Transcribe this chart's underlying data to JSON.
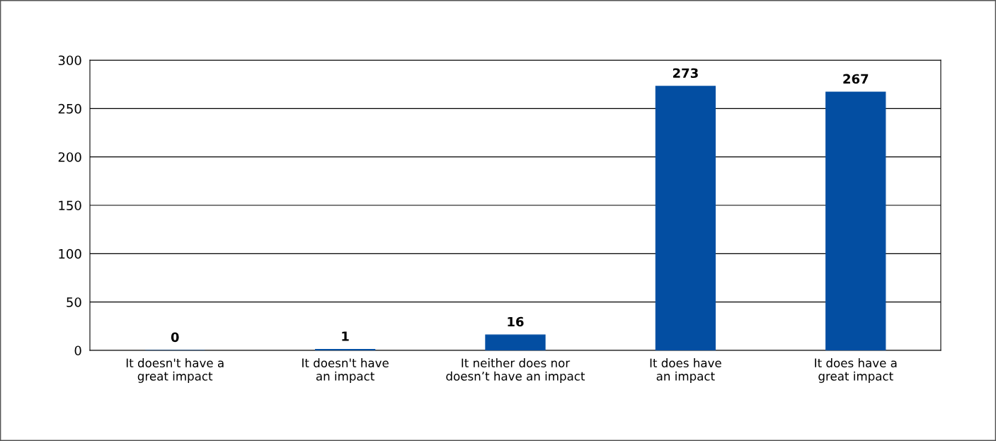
{
  "chart_data": {
    "type": "bar",
    "categories": [
      "It doesn't have a\ngreat impact",
      "It doesn't have\nan impact",
      "It neither does nor\ndoesn’t have an impact",
      "It does have\nan impact",
      "It does have a\ngreat impact"
    ],
    "values": [
      0,
      1,
      16,
      273,
      267
    ],
    "color": "#034ea2",
    "ylim": [
      0,
      300
    ],
    "yticks": [
      0,
      50,
      100,
      150,
      200,
      250,
      300
    ],
    "grid": "y",
    "data_labels": true,
    "legend": false
  }
}
